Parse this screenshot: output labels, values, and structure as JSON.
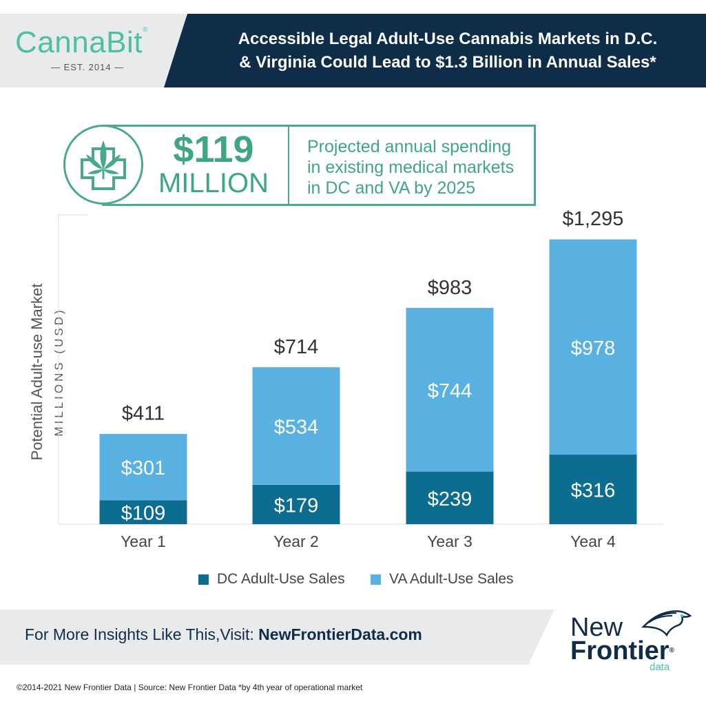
{
  "brand": {
    "name": "CannaBit",
    "reg": "®",
    "est": "— EST. 2014 —",
    "accent_color": "#4dbfa4"
  },
  "header": {
    "title_line1": "Accessible Legal Adult-Use Cannabis Markets in D.C.",
    "title_line2": "& Virginia Could Lead to $1.3 Billion in Annual Sales*",
    "bg_color": "#0f2c48"
  },
  "highlight": {
    "icon": "cannabis-leaf-medical-cross-icon",
    "value": "$119",
    "unit": "MILLION",
    "text_line1": "Projected annual spending",
    "text_line2": "in existing medical markets",
    "text_line3": "in DC and VA by 2025",
    "color": "#3fa684"
  },
  "chart_data": {
    "type": "bar",
    "stacked": true,
    "categories": [
      "Year 1",
      "Year 2",
      "Year 3",
      "Year 4"
    ],
    "series": [
      {
        "name": "DC Adult-Use Sales",
        "values": [
          109,
          179,
          239,
          316
        ],
        "labels": [
          "$109",
          "$179",
          "$239",
          "$316"
        ],
        "color": "#0d6d91"
      },
      {
        "name": "VA Adult-Use Sales",
        "values": [
          301,
          534,
          744,
          978
        ],
        "labels": [
          "$301",
          "$534",
          "$744",
          "$978"
        ],
        "color": "#59b1e2"
      }
    ],
    "totals": [
      411,
      714,
      983,
      1295
    ],
    "total_labels": [
      "$411",
      "$714",
      "$983",
      "$1,295"
    ],
    "ylabel": "Potential Adult-use Market",
    "ylabel_units": "MILLIONS (USD)",
    "ylim": [
      0,
      1300
    ],
    "grid": false,
    "legend_position": "bottom"
  },
  "footer": {
    "text": "For More Insights Like This,Visit: ",
    "link": "NewFrontierData.com",
    "logo_line1": "New",
    "logo_line2": "Frontier",
    "logo_reg": "®",
    "logo_line3": "data",
    "logo_icon": "horse-head-icon",
    "copyright": "©2014-2021  New Frontier Data | Source: New Frontier Data    *by 4th year of operational market"
  }
}
